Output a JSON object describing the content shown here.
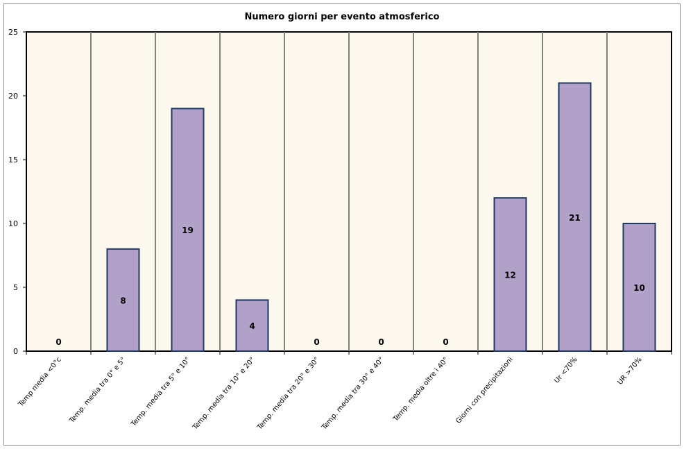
{
  "chart_data": {
    "type": "bar",
    "title": "Numero giorni per evento atmosferico",
    "xlabel": "",
    "ylabel": "",
    "ylim": [
      0,
      25
    ],
    "yticks": [
      0,
      5,
      10,
      15,
      20,
      25
    ],
    "grid": "vertical",
    "legend": "none",
    "categories": [
      "Temp media <0°c",
      "Temp. media tra 0° e 5°",
      "Temp. media tra 5° e 10°",
      "Temp. media tra 10° e 20°",
      "Temp. media tra 20° e 30°",
      "Temp. media tra 30° e 40°",
      "Temp. media oltre i 40°",
      "Giorni con precipitazioni",
      "Ur <70%",
      "UR >70%"
    ],
    "values": [
      0,
      8,
      19,
      4,
      0,
      0,
      0,
      12,
      21,
      10
    ],
    "colors": {
      "bar_fill": "#b1a0c7",
      "bar_stroke": "#1f3763",
      "plot_bg": "#fdf8ee",
      "grid": "#808080"
    }
  }
}
